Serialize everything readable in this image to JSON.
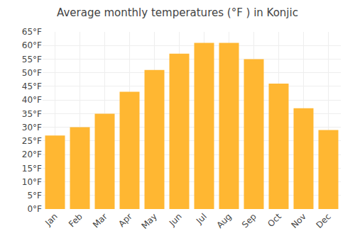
{
  "chart_data": {
    "type": "bar",
    "title": "Average monthly temperatures (°F ) in Konjic",
    "categories": [
      "Jan",
      "Feb",
      "Mar",
      "Apr",
      "May",
      "Jun",
      "Jul",
      "Aug",
      "Sep",
      "Oct",
      "Nov",
      "Dec"
    ],
    "values": [
      27,
      30,
      35,
      43,
      51,
      57,
      61,
      61,
      55,
      46,
      37,
      29
    ],
    "color": "#FFB732",
    "ylim": [
      0,
      65
    ],
    "yticks": [
      {
        "value": 0,
        "label": "0°F"
      },
      {
        "value": 5,
        "label": "5°F"
      },
      {
        "value": 10,
        "label": "10°F"
      },
      {
        "value": 15,
        "label": "15°F"
      },
      {
        "value": 20,
        "label": "20°F"
      },
      {
        "value": 25,
        "label": "25°F"
      },
      {
        "value": 30,
        "label": "30°F"
      },
      {
        "value": 35,
        "label": "35°F"
      },
      {
        "value": 40,
        "label": "40°F"
      },
      {
        "value": 45,
        "label": "45°F"
      },
      {
        "value": 50,
        "label": "50°F"
      },
      {
        "value": 55,
        "label": "55°F"
      },
      {
        "value": 60,
        "label": "60°F"
      },
      {
        "value": 65,
        "label": "65°F"
      }
    ],
    "grid": true
  }
}
